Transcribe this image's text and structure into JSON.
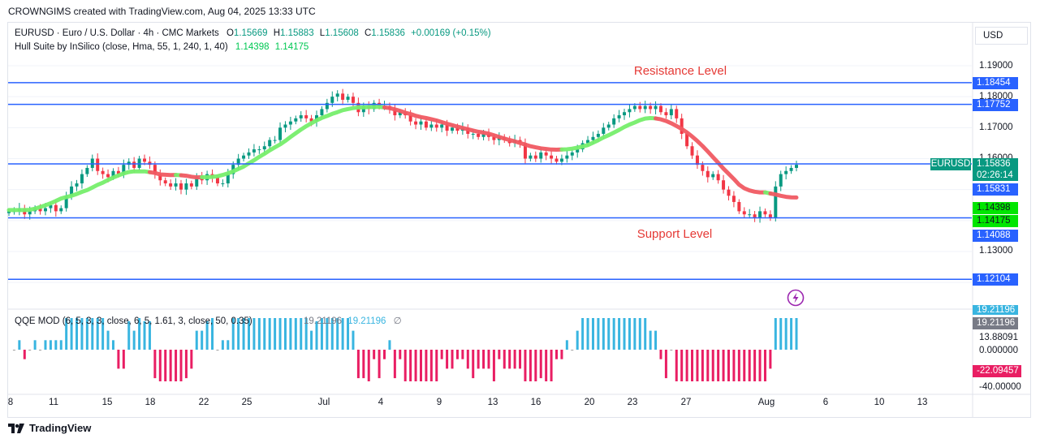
{
  "header": {
    "caption": "CROWNGIMS created with TradingView.com, Aug 04, 2025 13:33 UTC"
  },
  "legend": {
    "symbol": "EURUSD · Euro / U.S. Dollar · 4h · CMC Markets",
    "o_label": "O",
    "o_value": "1.15669",
    "h_label": "H",
    "h_value": "1.15883",
    "l_label": "L",
    "l_value": "1.15608",
    "c_label": "C",
    "c_value": "1.15836",
    "change": "+0.00169 (+0.15%)",
    "indicator": "Hull Suite by InSilico (close, Hma, 55, 1, 240, 1, 40)",
    "indicator_v1": "1.14398",
    "indicator_v2": "1.14175"
  },
  "oscillator_legend": {
    "name": "QQE MOD (6, 5, 3, 3, close, 6, 5, 1.61, 3, close, 50, 0.35)",
    "v1": "19.21196",
    "v2": "19.21196",
    "v3": "∅"
  },
  "annotations": {
    "resistance": "Resistance Level",
    "support": "Support Level"
  },
  "currency": "USD",
  "price_axis": [
    "1.19000",
    "1.18000",
    "1.17000",
    "1.16000",
    "1.13000"
  ],
  "labels": {
    "r1": "1.18454",
    "r2": "1.17752",
    "symbol_tag": "EURUSD",
    "last_price": "1.15836",
    "countdown": "02:26:14",
    "level_mid": "1.15831",
    "hull1": "1.14398",
    "hull2": "1.14175",
    "s1": "1.14088",
    "s2": "1.12104"
  },
  "osc_axis": {
    "top_partial": "19.21196",
    "current": "19.21196",
    "v1": "13.88091",
    "zero": "0.000000",
    "neg": "-22.09457",
    "low": "-40.00000"
  },
  "date_axis": [
    "8",
    "11",
    "15",
    "18",
    "22",
    "25",
    "Jul",
    "4",
    "9",
    "13",
    "16",
    "20",
    "23",
    "27",
    "Aug",
    "6",
    "10",
    "13"
  ],
  "footer": {
    "logo": "TradingView"
  },
  "colors": {
    "up": "#089981",
    "down": "#f23645",
    "level": "#2962ff",
    "hull_up": "#76ee6c",
    "hull_down": "#f05a62",
    "osc_up": "#39b5e0",
    "osc_down": "#e91e63",
    "osc_neutral": "#9e9e9e",
    "annotation": "#e53935",
    "lime_label": "#00e600"
  },
  "chart_data": {
    "type": "candlestick",
    "timeframe": "4h",
    "title": "EURUSD · Euro / U.S. Dollar · 4h · CMC Markets",
    "ylim": [
      1.115,
      1.195
    ],
    "horizontal_levels": [
      1.18454,
      1.17752,
      1.15831,
      1.14088,
      1.12104
    ],
    "closes": [
      1.143,
      1.143,
      1.144,
      1.142,
      1.143,
      1.144,
      1.143,
      1.144,
      1.145,
      1.143,
      1.144,
      1.148,
      1.151,
      1.152,
      1.155,
      1.157,
      1.16,
      1.156,
      1.155,
      1.154,
      1.156,
      1.155,
      1.158,
      1.159,
      1.157,
      1.16,
      1.159,
      1.158,
      1.155,
      1.153,
      1.152,
      1.151,
      1.152,
      1.15,
      1.152,
      1.151,
      1.154,
      1.153,
      1.155,
      1.154,
      1.152,
      1.152,
      1.155,
      1.158,
      1.16,
      1.161,
      1.162,
      1.163,
      1.163,
      1.164,
      1.166,
      1.166,
      1.17,
      1.171,
      1.172,
      1.173,
      1.174,
      1.173,
      1.172,
      1.174,
      1.176,
      1.178,
      1.18,
      1.181,
      1.179,
      1.18,
      1.178,
      1.175,
      1.177,
      1.176,
      1.178,
      1.177,
      1.177,
      1.176,
      1.174,
      1.175,
      1.174,
      1.172,
      1.171,
      1.172,
      1.17,
      1.171,
      1.17,
      1.171,
      1.169,
      1.17,
      1.169,
      1.17,
      1.168,
      1.168,
      1.167,
      1.168,
      1.167,
      1.166,
      1.167,
      1.166,
      1.165,
      1.166,
      1.165,
      1.16,
      1.161,
      1.16,
      1.162,
      1.161,
      1.16,
      1.159,
      1.16,
      1.161,
      1.162,
      1.163,
      1.165,
      1.166,
      1.167,
      1.168,
      1.17,
      1.171,
      1.173,
      1.174,
      1.175,
      1.176,
      1.177,
      1.176,
      1.177,
      1.176,
      1.177,
      1.175,
      1.174,
      1.176,
      1.173,
      1.168,
      1.164,
      1.161,
      1.158,
      1.156,
      1.154,
      1.155,
      1.153,
      1.15,
      1.148,
      1.146,
      1.143,
      1.142,
      1.142,
      1.141,
      1.143,
      1.142,
      1.141,
      1.151,
      1.155,
      1.156,
      1.157,
      1.158
    ],
    "hull_suite": {
      "latest": [
        1.14398,
        1.14175
      ],
      "trend_segments": [
        "up",
        "down",
        "up",
        "down",
        "up",
        "down",
        "up"
      ]
    },
    "oscillator": {
      "name": "QQE MOD",
      "ylim": [
        -40,
        30
      ],
      "latest": 19.21196,
      "levels": [
        13.88091,
        0,
        -22.09457,
        -40
      ]
    },
    "x_ticks": [
      "8",
      "11",
      "15",
      "18",
      "22",
      "25",
      "Jul",
      "4",
      "9",
      "13",
      "16",
      "20",
      "23",
      "27",
      "Aug",
      "6",
      "10",
      "13"
    ]
  }
}
